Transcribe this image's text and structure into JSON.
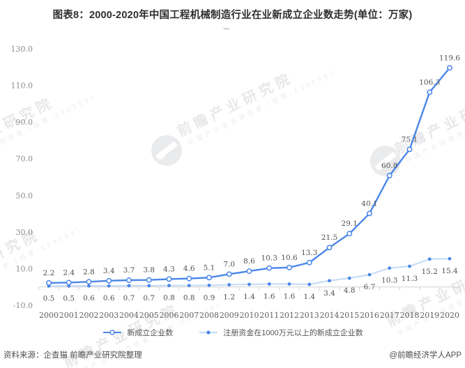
{
  "title": "图表8：2000-2020年中国工程机械制造行业在业新成立企业数走势(单位：万家)",
  "title_artifact": "~--",
  "chart_data": {
    "type": "line",
    "title": "图表8：2000-2020年中国工程机械制造行业在业新成立企业数走势(单位：万家)",
    "categories": [
      "2000",
      "2001",
      "2002",
      "2003",
      "2004",
      "2005",
      "2006",
      "2007",
      "2008",
      "2009",
      "2010",
      "2011",
      "2012",
      "2013",
      "2014",
      "2015",
      "2016",
      "2017",
      "2018",
      "2019",
      "2020"
    ],
    "series": [
      {
        "name": "新成立企业数",
        "values": [
          2.2,
          2.4,
          2.8,
          3.4,
          3.7,
          3.8,
          4.3,
          4.6,
          5.1,
          7.0,
          8.6,
          10.3,
          10.6,
          13.3,
          21.5,
          29.1,
          40.1,
          60.8,
          75.1,
          106.3,
          119.6
        ],
        "color": "#4a86e8",
        "marker": "hollow-circle",
        "label_position": "above"
      },
      {
        "name": "注册资金在1000万元以上的新成立企业数",
        "values": [
          0.5,
          0.5,
          0.6,
          0.6,
          0.7,
          0.7,
          0.8,
          0.8,
          0.9,
          1.2,
          1.4,
          1.6,
          1.6,
          1.4,
          3.4,
          4.8,
          6.7,
          10.3,
          11.3,
          15.2,
          15.4
        ],
        "color": "#c3daf5",
        "marker": "dot",
        "marker_color": "#4a86e8",
        "label_position": "below"
      }
    ],
    "xlabel": "",
    "ylabel": "",
    "ylim": [
      -10,
      130
    ],
    "yticks": [
      130,
      110,
      90,
      70,
      50,
      30,
      10,
      -10
    ],
    "grid": false,
    "legend_position": "bottom",
    "axis_color": "#d0d0d0",
    "label_color": "#4f4f4f",
    "ytick_color": "#8a8a8a",
    "xtick_color": "#5f5f5f"
  },
  "watermark": {
    "text": "前瞻产业研究院",
    "subtext": "中国产业咨询领导者（股票:839599）"
  },
  "footer": {
    "source": "资料来源：企查猫 前瞻产业研究院整理",
    "credit": "@前瞻经济学人APP"
  }
}
